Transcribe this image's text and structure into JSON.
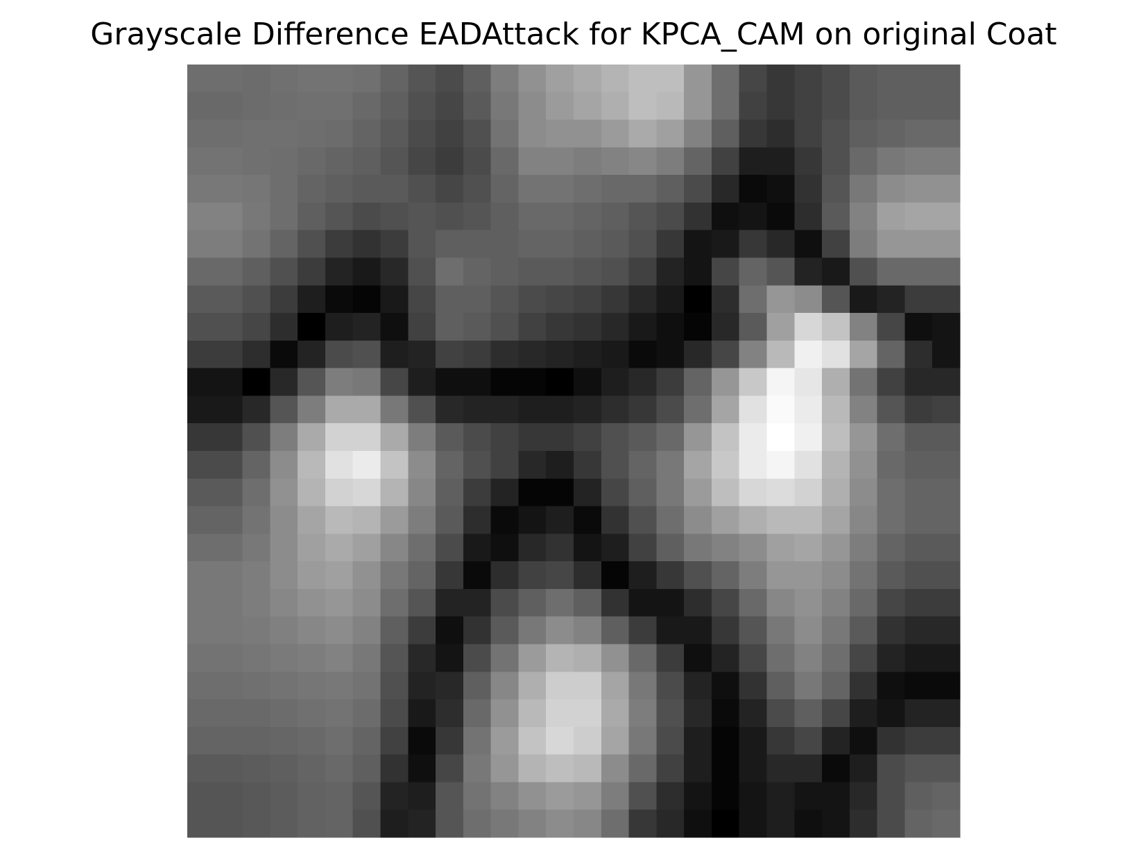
{
  "chart_data": {
    "type": "heatmap",
    "title": "Grayscale Difference EADAttack for KPCA_CAM on original Coat",
    "cmap": "gray",
    "values": [
      [
        110,
        110,
        108,
        112,
        115,
        115,
        112,
        100,
        85,
        75,
        95,
        125,
        145,
        160,
        170,
        180,
        190,
        190,
        150,
        110,
        70,
        55,
        65,
        75,
        90,
        95,
        95,
        95
      ],
      [
        105,
        105,
        108,
        110,
        112,
        112,
        105,
        95,
        80,
        70,
        90,
        120,
        140,
        155,
        165,
        175,
        190,
        185,
        150,
        110,
        65,
        55,
        65,
        75,
        90,
        95,
        95,
        95
      ],
      [
        110,
        110,
        112,
        112,
        110,
        108,
        100,
        90,
        75,
        65,
        80,
        115,
        140,
        145,
        145,
        155,
        170,
        160,
        130,
        95,
        55,
        45,
        65,
        80,
        95,
        100,
        105,
        105
      ],
      [
        115,
        115,
        112,
        110,
        105,
        100,
        95,
        85,
        70,
        60,
        75,
        105,
        130,
        130,
        125,
        130,
        135,
        125,
        100,
        65,
        30,
        30,
        55,
        80,
        105,
        120,
        125,
        125
      ],
      [
        120,
        120,
        118,
        110,
        100,
        95,
        90,
        90,
        80,
        70,
        80,
        100,
        115,
        115,
        110,
        105,
        105,
        95,
        75,
        40,
        10,
        15,
        50,
        85,
        120,
        140,
        145,
        145
      ],
      [
        130,
        130,
        120,
        110,
        95,
        85,
        75,
        80,
        85,
        80,
        85,
        95,
        105,
        105,
        100,
        95,
        85,
        75,
        50,
        15,
        20,
        10,
        45,
        90,
        130,
        160,
        165,
        165
      ],
      [
        125,
        125,
        115,
        100,
        80,
        60,
        50,
        60,
        85,
        95,
        95,
        95,
        100,
        100,
        95,
        90,
        80,
        55,
        20,
        25,
        55,
        40,
        15,
        65,
        125,
        150,
        150,
        150
      ],
      [
        105,
        105,
        95,
        80,
        60,
        35,
        25,
        40,
        80,
        110,
        100,
        95,
        90,
        90,
        85,
        80,
        65,
        35,
        20,
        70,
        100,
        85,
        35,
        25,
        80,
        105,
        105,
        105
      ],
      [
        90,
        90,
        80,
        60,
        30,
        10,
        5,
        25,
        70,
        95,
        95,
        85,
        75,
        70,
        65,
        55,
        40,
        25,
        0,
        45,
        110,
        150,
        140,
        85,
        25,
        35,
        60,
        60
      ],
      [
        80,
        80,
        70,
        45,
        0,
        30,
        35,
        15,
        65,
        95,
        90,
        80,
        65,
        55,
        50,
        40,
        25,
        15,
        5,
        40,
        90,
        160,
        215,
        195,
        130,
        70,
        15,
        20
      ],
      [
        60,
        60,
        45,
        10,
        35,
        75,
        80,
        30,
        35,
        65,
        60,
        45,
        40,
        35,
        30,
        25,
        10,
        15,
        40,
        70,
        130,
        185,
        240,
        225,
        165,
        100,
        45,
        20
      ],
      [
        20,
        20,
        0,
        40,
        85,
        125,
        120,
        70,
        30,
        15,
        15,
        5,
        5,
        0,
        15,
        30,
        40,
        60,
        100,
        150,
        200,
        245,
        230,
        175,
        115,
        65,
        40,
        40
      ],
      [
        25,
        25,
        40,
        85,
        125,
        170,
        170,
        120,
        80,
        40,
        35,
        35,
        30,
        30,
        35,
        45,
        55,
        75,
        110,
        165,
        225,
        250,
        235,
        185,
        130,
        85,
        60,
        65
      ],
      [
        55,
        55,
        80,
        125,
        170,
        210,
        210,
        170,
        125,
        90,
        75,
        65,
        55,
        55,
        65,
        80,
        90,
        105,
        150,
        195,
        235,
        255,
        240,
        190,
        150,
        110,
        90,
        90
      ],
      [
        75,
        75,
        100,
        140,
        185,
        225,
        235,
        195,
        140,
        100,
        80,
        65,
        40,
        30,
        55,
        80,
        100,
        120,
        165,
        200,
        235,
        245,
        225,
        180,
        145,
        105,
        95,
        95
      ],
      [
        90,
        90,
        110,
        145,
        180,
        210,
        215,
        180,
        135,
        95,
        60,
        35,
        5,
        5,
        35,
        70,
        95,
        120,
        155,
        190,
        215,
        220,
        210,
        175,
        140,
        110,
        100,
        100
      ],
      [
        100,
        100,
        115,
        140,
        165,
        185,
        180,
        155,
        125,
        90,
        45,
        10,
        20,
        30,
        10,
        50,
        80,
        110,
        140,
        160,
        175,
        185,
        185,
        165,
        135,
        110,
        100,
        100
      ],
      [
        110,
        110,
        120,
        140,
        160,
        170,
        160,
        135,
        110,
        75,
        25,
        15,
        40,
        50,
        20,
        30,
        65,
        95,
        120,
        130,
        140,
        160,
        165,
        150,
        125,
        100,
        90,
        90
      ],
      [
        120,
        120,
        125,
        140,
        155,
        160,
        145,
        120,
        100,
        55,
        10,
        45,
        65,
        70,
        45,
        5,
        30,
        55,
        80,
        100,
        125,
        150,
        150,
        140,
        115,
        90,
        80,
        80
      ],
      [
        120,
        120,
        125,
        135,
        145,
        150,
        140,
        110,
        85,
        35,
        35,
        75,
        95,
        110,
        95,
        50,
        20,
        20,
        45,
        70,
        105,
        135,
        145,
        130,
        105,
        70,
        60,
        60
      ],
      [
        120,
        120,
        122,
        128,
        135,
        140,
        130,
        95,
        60,
        15,
        50,
        90,
        120,
        140,
        130,
        95,
        60,
        25,
        25,
        55,
        85,
        120,
        140,
        120,
        90,
        50,
        40,
        40
      ],
      [
        115,
        115,
        118,
        122,
        125,
        130,
        120,
        85,
        40,
        20,
        75,
        115,
        155,
        180,
        175,
        145,
        105,
        60,
        15,
        35,
        70,
        110,
        130,
        110,
        70,
        35,
        25,
        25
      ],
      [
        110,
        110,
        112,
        115,
        118,
        120,
        115,
        80,
        35,
        40,
        95,
        135,
        175,
        205,
        205,
        165,
        120,
        75,
        35,
        15,
        50,
        95,
        120,
        100,
        50,
        15,
        10,
        10
      ],
      [
        105,
        105,
        105,
        108,
        112,
        115,
        108,
        75,
        25,
        45,
        105,
        145,
        185,
        210,
        210,
        170,
        125,
        80,
        40,
        10,
        35,
        75,
        95,
        70,
        30,
        20,
        35,
        35
      ],
      [
        100,
        100,
        100,
        102,
        105,
        110,
        100,
        65,
        10,
        55,
        115,
        155,
        195,
        215,
        205,
        165,
        120,
        75,
        30,
        5,
        25,
        55,
        70,
        35,
        15,
        50,
        60,
        60
      ],
      [
        90,
        90,
        92,
        95,
        100,
        105,
        95,
        50,
        15,
        70,
        120,
        150,
        180,
        190,
        185,
        140,
        105,
        65,
        30,
        5,
        25,
        40,
        40,
        10,
        30,
        75,
        85,
        85
      ],
      [
        85,
        85,
        88,
        92,
        98,
        100,
        85,
        35,
        30,
        85,
        115,
        130,
        145,
        155,
        150,
        125,
        80,
        45,
        20,
        5,
        20,
        30,
        20,
        20,
        40,
        75,
        95,
        100
      ],
      [
        85,
        85,
        88,
        92,
        98,
        100,
        80,
        30,
        35,
        85,
        110,
        120,
        130,
        140,
        135,
        110,
        55,
        40,
        15,
        0,
        20,
        30,
        15,
        20,
        45,
        75,
        100,
        105
      ]
    ]
  }
}
